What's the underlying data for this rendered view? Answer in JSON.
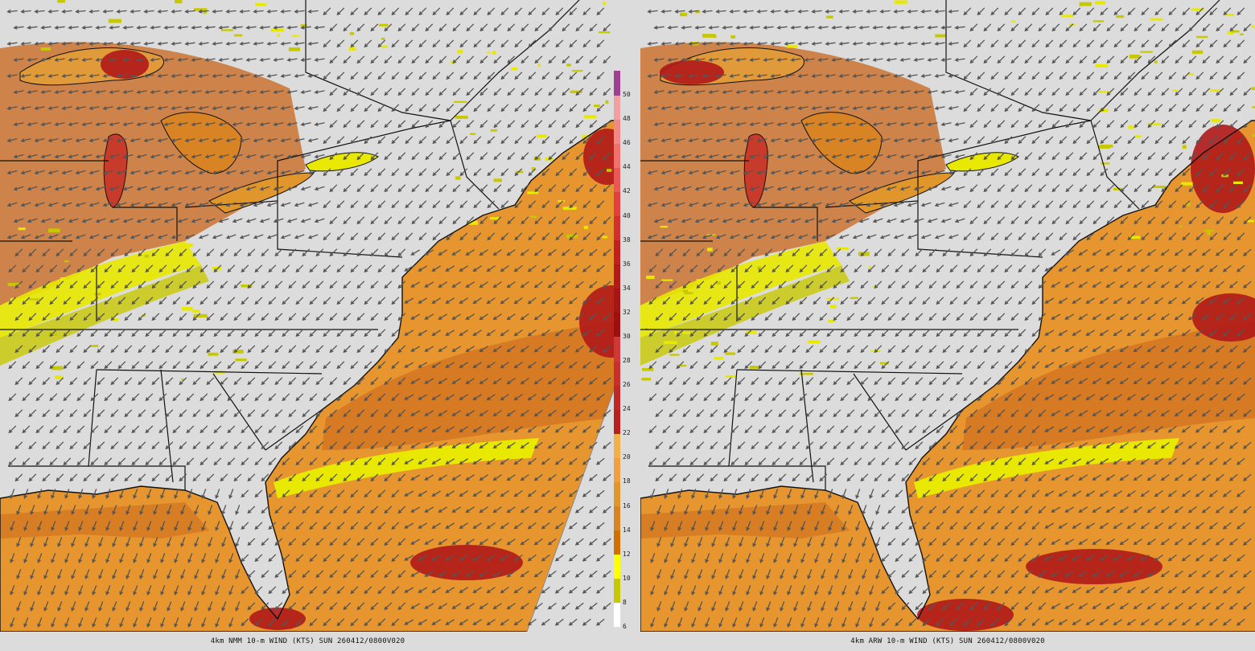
{
  "panels": [
    {
      "id": "nmm",
      "caption": "4km NMM 10-m WIND (KTS) SUN 260412/0800V020"
    },
    {
      "id": "arw",
      "caption": "4km ARW 10-m WIND (KTS) SUN 260412/0800V020"
    }
  ],
  "colorbar": {
    "labels": [
      "6",
      "8",
      "10",
      "12",
      "14",
      "16",
      "18",
      "20",
      "22",
      "24",
      "26",
      "28",
      "30",
      "32",
      "34",
      "36",
      "38",
      "40",
      "42",
      "44",
      "46",
      "48",
      "50"
    ],
    "colors": [
      "#ffffff",
      "#c8c800",
      "#ffff00",
      "#d07000",
      "#d88424",
      "#e0962a",
      "#f0a040",
      "#f4b048",
      "#b82020",
      "#c02828",
      "#c83030",
      "#d03838",
      "#9c1010",
      "#a61515",
      "#b01a1a",
      "#c02020",
      "#d03030",
      "#e04040",
      "#e85858",
      "#f07070",
      "#f08888",
      "#f0a0a0",
      "#a04090"
    ]
  },
  "palette": {
    "land": "#dcdcdc",
    "ocean_orange": "#e6952f",
    "ocean_dark": "#c8651a",
    "yellow": "#e8e800",
    "olive": "#c8c800",
    "red": "#b01818",
    "arrow": "#555555",
    "boundary": "#111111"
  },
  "wind_arrows": {
    "symbol": "arrow-icon",
    "direction": "southwest"
  }
}
